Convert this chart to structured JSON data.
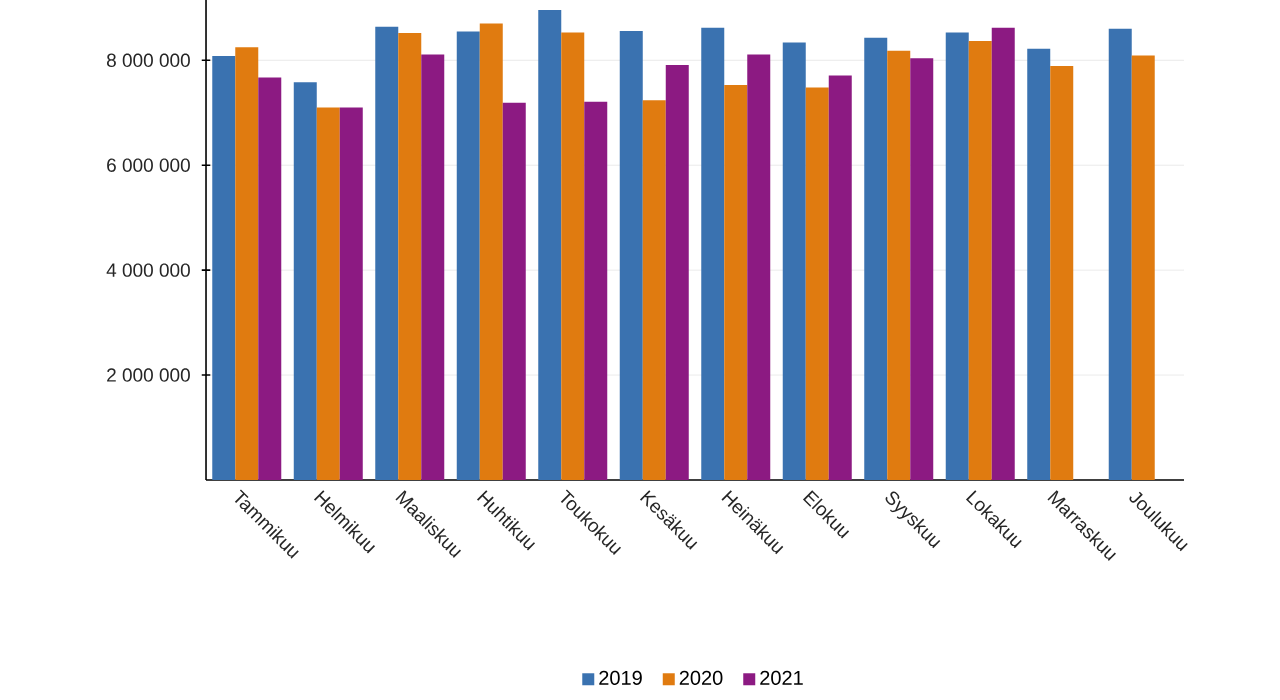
{
  "chart_data": {
    "type": "bar",
    "categories": [
      "Tammikuu",
      "Helmikuu",
      "Maaliskuu",
      "Huhtikuu",
      "Toukokuu",
      "Kesäkuu",
      "Heinäkuu",
      "Elokuu",
      "Syyskuu",
      "Lokakuu",
      "Marraskuu",
      "Joulukuu"
    ],
    "series": [
      {
        "name": "2019",
        "color": "#3a72b0",
        "values": [
          8080000,
          7580000,
          8640000,
          8550000,
          8960000,
          8560000,
          8620000,
          8340000,
          8430000,
          8530000,
          8220000,
          8600000
        ]
      },
      {
        "name": "2020",
        "color": "#e07b10",
        "values": [
          8250000,
          7100000,
          8520000,
          8700000,
          8530000,
          7240000,
          7530000,
          7480000,
          8180000,
          8370000,
          7890000,
          8090000
        ]
      },
      {
        "name": "2021",
        "color": "#8c1a82",
        "values": [
          7670000,
          7100000,
          8110000,
          7190000,
          7210000,
          7910000,
          8110000,
          7710000,
          8040000,
          8620000,
          null,
          null
        ]
      }
    ],
    "ylim": [
      0,
      9150000
    ],
    "yticks": [
      {
        "value": 2000000,
        "label": "2 000 000"
      },
      {
        "value": 4000000,
        "label": "4 000 000"
      },
      {
        "value": 6000000,
        "label": "6 000 000"
      },
      {
        "value": 8000000,
        "label": "8 000 000"
      }
    ],
    "grid": "y",
    "legend": "bottom"
  }
}
